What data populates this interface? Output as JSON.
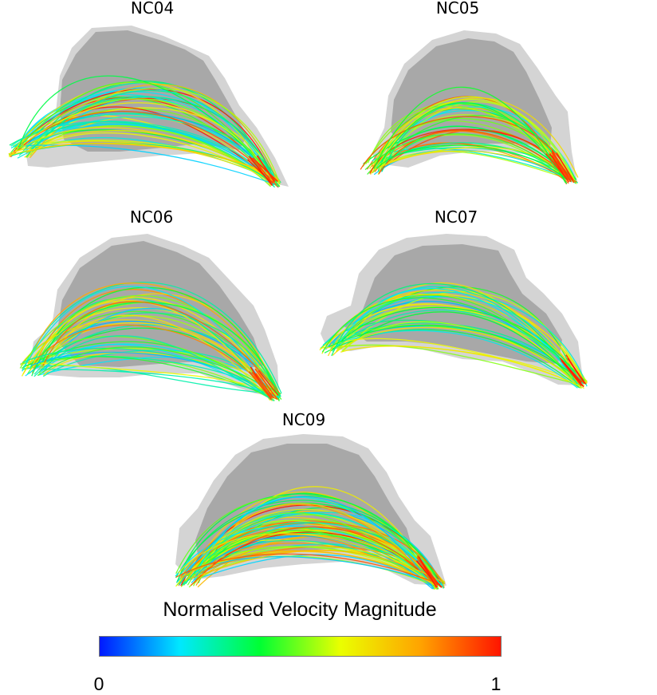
{
  "panels": [
    {
      "id": "NC04",
      "label": "NC04"
    },
    {
      "id": "NC05",
      "label": "NC05"
    },
    {
      "id": "NC06",
      "label": "NC06"
    },
    {
      "id": "NC07",
      "label": "NC07"
    },
    {
      "id": "NC09",
      "label": "NC09"
    }
  ],
  "legend": {
    "title": "Normalised Velocity Magnitude",
    "min_label": "0",
    "max_label": "1",
    "min_value": 0,
    "max_value": 1,
    "colormap": [
      "#0019ff",
      "#00e8ff",
      "#00ff33",
      "#eaff00",
      "#ffa300",
      "#ff1500"
    ]
  },
  "colors": {
    "cavity_outer": "#d4d4d4",
    "cavity_inner": "#a8a8a8"
  }
}
